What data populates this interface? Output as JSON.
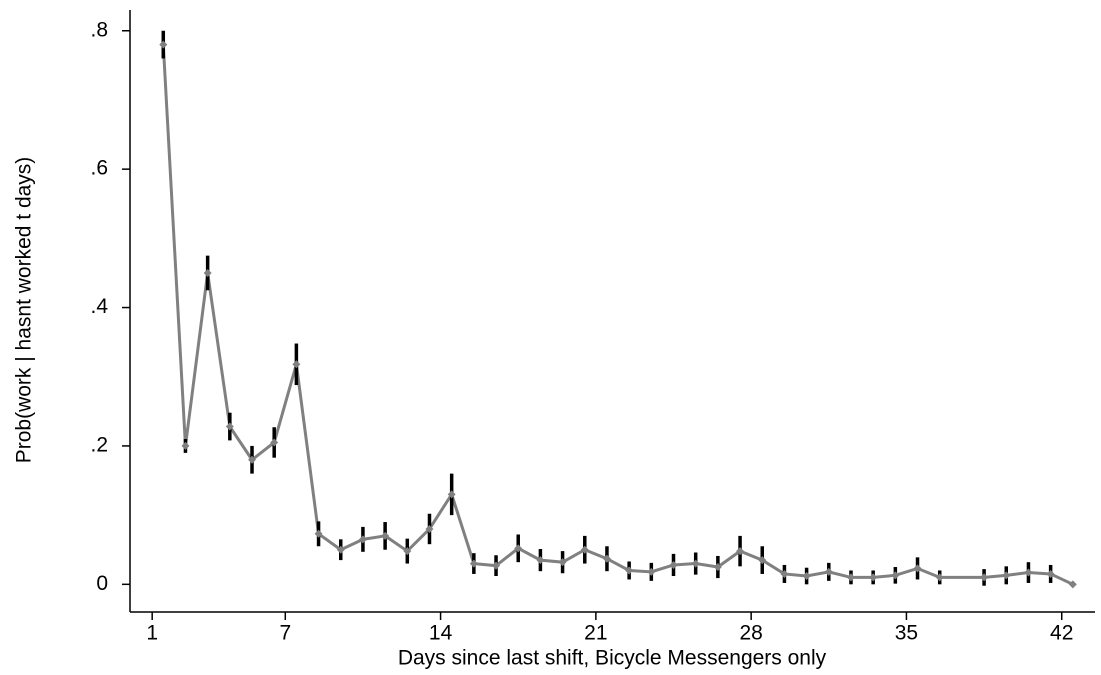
{
  "chart_data": {
    "type": "line",
    "xlabel": "Days since last shift, Bicycle Messengers only",
    "ylabel": "Prob(work | hasnt worked t days)",
    "x": [
      1.5,
      2.5,
      3.5,
      4.5,
      5.5,
      6.5,
      7.5,
      8.5,
      9.5,
      10.5,
      11.5,
      12.5,
      13.5,
      14.5,
      15.5,
      16.5,
      17.5,
      18.5,
      19.5,
      20.5,
      21.5,
      22.5,
      23.5,
      24.5,
      25.5,
      26.5,
      27.5,
      28.5,
      29.5,
      30.5,
      31.5,
      32.5,
      33.5,
      34.5,
      35.5,
      36.5,
      38.5,
      39.5,
      40.5,
      41.5,
      42.5
    ],
    "series": [
      {
        "color": "#808080",
        "values": [
          0.78,
          0.2,
          0.45,
          0.228,
          0.18,
          0.205,
          0.318,
          0.073,
          0.05,
          0.065,
          0.07,
          0.048,
          0.08,
          0.13,
          0.03,
          0.027,
          0.052,
          0.035,
          0.032,
          0.05,
          0.037,
          0.02,
          0.018,
          0.028,
          0.03,
          0.025,
          0.048,
          0.035,
          0.015,
          0.012,
          0.018,
          0.01,
          0.01,
          0.013,
          0.023,
          0.01,
          0.01,
          0.013,
          0.017,
          0.015,
          0
        ],
        "errors": [
          0.02,
          0.01,
          0.025,
          0.02,
          0.02,
          0.022,
          0.03,
          0.018,
          0.015,
          0.018,
          0.02,
          0.018,
          0.022,
          0.03,
          0.015,
          0.015,
          0.02,
          0.016,
          0.016,
          0.02,
          0.018,
          0.013,
          0.013,
          0.016,
          0.016,
          0.016,
          0.022,
          0.02,
          0.013,
          0.012,
          0.013,
          0.01,
          0.01,
          0.012,
          0.016,
          0.01,
          0.012,
          0.013,
          0.015,
          0.013,
          0
        ],
        "error_color": "#000000"
      }
    ],
    "xlim": [
      0,
      43.5
    ],
    "ylim": [
      -0.04,
      0.83
    ],
    "xticks": [
      1,
      7,
      14,
      21,
      28,
      35,
      42
    ],
    "yticks": [
      0,
      {
        "value": 0.2,
        "label": ".2"
      },
      {
        "value": 0.4,
        "label": ".4"
      },
      {
        "value": 0.6,
        "label": ".6"
      },
      {
        "value": 0.8,
        "label": ".8"
      }
    ]
  }
}
